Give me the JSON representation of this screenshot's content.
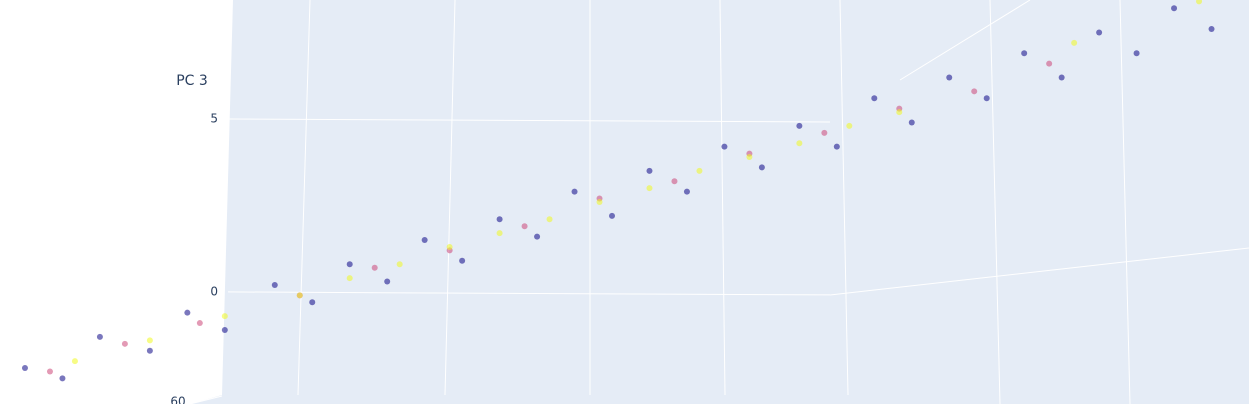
{
  "chart_data": {
    "type": "scatter3d",
    "zaxis_title": "PC 3",
    "xlim": [
      0,
      100
    ],
    "zlim": [
      -3.24,
      8.44
    ],
    "zticks": [
      0,
      5
    ],
    "yticks": [
      60
    ],
    "grid": true,
    "series": [
      {
        "color": "#0d0887",
        "x": [
          2,
          5,
          8,
          12,
          15,
          18,
          22,
          25,
          28,
          31,
          34,
          37,
          40,
          43,
          46,
          49,
          52,
          55,
          58,
          61,
          64,
          67,
          70,
          73,
          76,
          79,
          82,
          85,
          88,
          91,
          94,
          97
        ],
        "z": [
          -2.2,
          -2.5,
          -1.3,
          -1.7,
          -0.6,
          -1.1,
          0.2,
          -0.3,
          0.8,
          0.3,
          1.5,
          0.9,
          2.1,
          1.6,
          2.9,
          2.2,
          3.5,
          2.9,
          4.2,
          3.6,
          4.8,
          4.2,
          5.6,
          4.9,
          6.2,
          5.6,
          6.9,
          6.2,
          7.5,
          6.9,
          8.2,
          7.6
        ]
      },
      {
        "color": "#cc4778",
        "x": [
          4,
          10,
          16,
          24,
          30,
          36,
          42,
          48,
          54,
          60,
          66,
          72,
          78,
          84
        ],
        "z": [
          -2.3,
          -1.5,
          -0.9,
          -0.1,
          0.7,
          1.2,
          1.9,
          2.7,
          3.2,
          4.0,
          4.6,
          5.3,
          5.8,
          6.6
        ]
      },
      {
        "color": "#f0f921",
        "x": [
          6,
          12,
          18,
          24,
          28,
          32,
          36,
          40,
          44,
          48,
          52,
          56,
          60,
          64,
          68,
          72,
          86,
          96
        ],
        "z": [
          -2.0,
          -1.4,
          -0.7,
          -0.1,
          0.4,
          0.8,
          1.3,
          1.7,
          2.1,
          2.6,
          3.0,
          3.5,
          3.9,
          4.3,
          4.8,
          5.2,
          7.2,
          8.4
        ]
      }
    ]
  }
}
